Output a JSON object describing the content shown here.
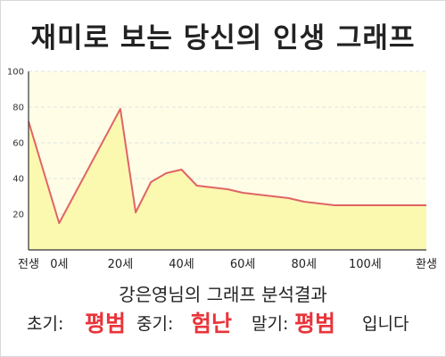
{
  "page": {
    "title": "재미로 보는 당신의 인생 그래프",
    "subtitle": "강은영님의 그래프 분석결과",
    "verdict": {
      "early_label": "초기:",
      "early_value": "평범",
      "mid_label": "중기:",
      "mid_value": "험난",
      "late_label": "말기:",
      "late_value": "평범",
      "ending": "입니다"
    }
  },
  "colors": {
    "line": "#e06466",
    "fill": "#fbf8b0",
    "plot_bg": "#fffde6",
    "verdict_accent": "#e8343a"
  },
  "chart_data": {
    "type": "area",
    "title": "재미로 보는 당신의 인생 그래프",
    "x_ticks": [
      {
        "x": -10,
        "label": "전생"
      },
      {
        "x": 0,
        "label": "0세"
      },
      {
        "x": 20,
        "label": "20세"
      },
      {
        "x": 40,
        "label": "40세"
      },
      {
        "x": 60,
        "label": "60세"
      },
      {
        "x": 80,
        "label": "80세"
      },
      {
        "x": 100,
        "label": "100세"
      },
      {
        "x": 120,
        "label": "환생"
      }
    ],
    "x": [
      -10,
      0,
      20,
      25,
      30,
      35,
      40,
      45,
      50,
      55,
      60,
      65,
      70,
      75,
      80,
      85,
      90,
      95,
      100,
      105,
      110,
      115,
      120
    ],
    "y": [
      72,
      15,
      79,
      21,
      38,
      43,
      45,
      36,
      35,
      34,
      32,
      31,
      30,
      29,
      27,
      26,
      25,
      25,
      25,
      25,
      25,
      25,
      25
    ],
    "xlim": [
      -10,
      120
    ],
    "ylim": [
      0,
      100
    ],
    "y_ticks": [
      20,
      40,
      60,
      80,
      100
    ],
    "grid": true,
    "legend": "none"
  }
}
